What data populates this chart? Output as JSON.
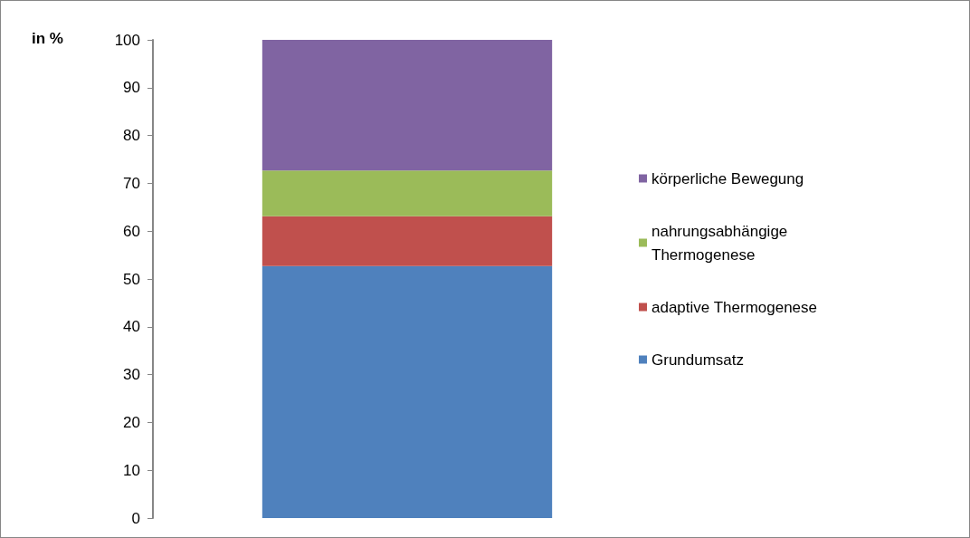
{
  "chart_data": {
    "type": "bar",
    "stacked": true,
    "ylabel": "in %",
    "categories": [
      null
    ],
    "series": [
      {
        "name": "Grundumsatz",
        "color": "#4f81bd",
        "values": [
          52.7
        ]
      },
      {
        "name": "adaptive Thermogenese",
        "color": "#c0504d",
        "values": [
          10.4
        ]
      },
      {
        "name": "nahrungsabhängige Thermogenese",
        "color": "#9bbb59",
        "values": [
          9.6
        ]
      },
      {
        "name": "körperliche Bewegung",
        "color": "#8064a2",
        "values": [
          27.3
        ]
      }
    ],
    "ylim": [
      0,
      100
    ],
    "yticks": [
      0,
      10,
      20,
      30,
      40,
      50,
      60,
      70,
      80,
      90,
      100
    ],
    "grid": false,
    "legend": "right"
  }
}
